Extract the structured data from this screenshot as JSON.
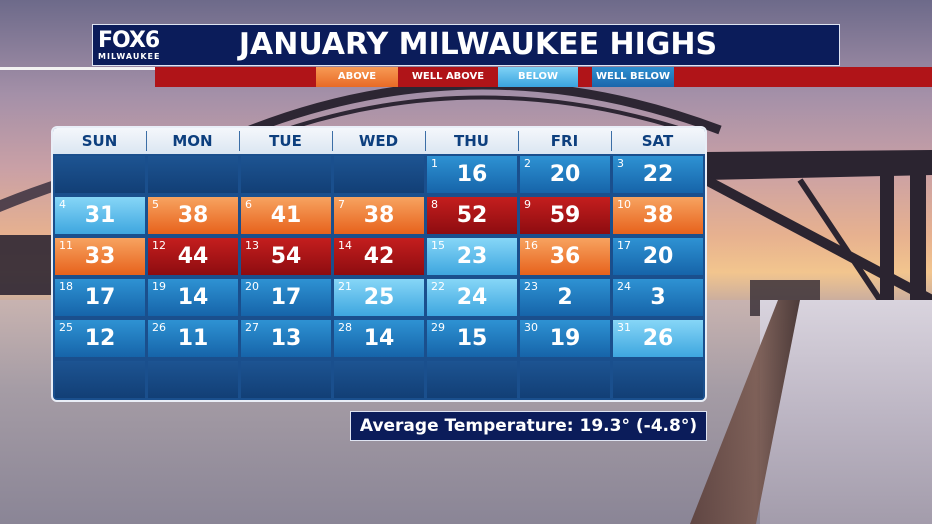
{
  "header": {
    "logo_text": "FOX6",
    "logo_subtext": "MILWAUKEE",
    "title": "JANUARY MILWAUKEE HIGHS"
  },
  "legend": {
    "above": "ABOVE",
    "well_above": "WELL ABOVE",
    "below": "BELOW",
    "well_below": "WELL BELOW"
  },
  "colors": {
    "above": "#e86a25",
    "well_above": "#b01418",
    "below": "#3ea6df",
    "well_below": "#1a66ab",
    "header_navy": "#0b1c5a"
  },
  "calendar": {
    "days": [
      "SUN",
      "MON",
      "TUE",
      "WED",
      "THU",
      "FRI",
      "SAT"
    ],
    "weeks": [
      [
        null,
        null,
        null,
        null,
        {
          "d": "1",
          "t": "16",
          "c": "wbelow"
        },
        {
          "d": "2",
          "t": "20",
          "c": "wbelow"
        },
        {
          "d": "3",
          "t": "22",
          "c": "wbelow"
        }
      ],
      [
        {
          "d": "4",
          "t": "31",
          "c": "below"
        },
        {
          "d": "5",
          "t": "38",
          "c": "above"
        },
        {
          "d": "6",
          "t": "41",
          "c": "above"
        },
        {
          "d": "7",
          "t": "38",
          "c": "above"
        },
        {
          "d": "8",
          "t": "52",
          "c": "wabove"
        },
        {
          "d": "9",
          "t": "59",
          "c": "wabove"
        },
        {
          "d": "10",
          "t": "38",
          "c": "above"
        }
      ],
      [
        {
          "d": "11",
          "t": "33",
          "c": "above"
        },
        {
          "d": "12",
          "t": "44",
          "c": "wabove"
        },
        {
          "d": "13",
          "t": "54",
          "c": "wabove"
        },
        {
          "d": "14",
          "t": "42",
          "c": "wabove"
        },
        {
          "d": "15",
          "t": "23",
          "c": "below"
        },
        {
          "d": "16",
          "t": "36",
          "c": "above"
        },
        {
          "d": "17",
          "t": "20",
          "c": "wbelow"
        }
      ],
      [
        {
          "d": "18",
          "t": "17",
          "c": "wbelow"
        },
        {
          "d": "19",
          "t": "14",
          "c": "wbelow"
        },
        {
          "d": "20",
          "t": "17",
          "c": "wbelow"
        },
        {
          "d": "21",
          "t": "25",
          "c": "below"
        },
        {
          "d": "22",
          "t": "24",
          "c": "below"
        },
        {
          "d": "23",
          "t": "2",
          "c": "wbelow"
        },
        {
          "d": "24",
          "t": "3",
          "c": "wbelow"
        }
      ],
      [
        {
          "d": "25",
          "t": "12",
          "c": "wbelow"
        },
        {
          "d": "26",
          "t": "11",
          "c": "wbelow"
        },
        {
          "d": "27",
          "t": "13",
          "c": "wbelow"
        },
        {
          "d": "28",
          "t": "14",
          "c": "wbelow"
        },
        {
          "d": "29",
          "t": "15",
          "c": "wbelow"
        },
        {
          "d": "30",
          "t": "19",
          "c": "wbelow"
        },
        {
          "d": "31",
          "t": "26",
          "c": "below"
        }
      ],
      [
        null,
        null,
        null,
        null,
        null,
        null,
        null
      ]
    ]
  },
  "average": "Average Temperature: 19.3° (-4.8°)"
}
